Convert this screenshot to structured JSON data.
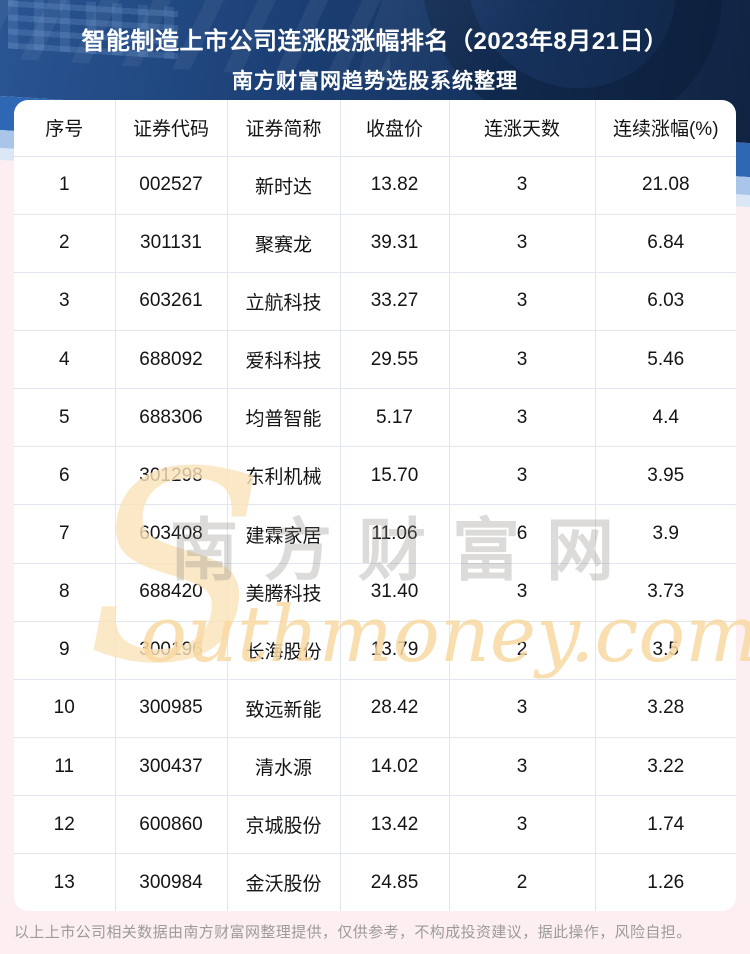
{
  "header": {
    "title_line1": "智能制造上市公司连涨股涨幅排名（2023年8月21日）",
    "title_line2": "南方财富网趋势选股系统整理"
  },
  "chart_data": {
    "type": "table",
    "title": "智能制造上市公司连涨股涨幅排名（2023年8月21日）",
    "subtitle": "南方财富网趋势选股系统整理",
    "columns": [
      "序号",
      "证券代码",
      "证券简称",
      "收盘价",
      "连涨天数",
      "连续涨幅(%)"
    ],
    "rows": [
      [
        "1",
        "002527",
        "新时达",
        "13.82",
        "3",
        "21.08"
      ],
      [
        "2",
        "301131",
        "聚赛龙",
        "39.31",
        "3",
        "6.84"
      ],
      [
        "3",
        "603261",
        "立航科技",
        "33.27",
        "3",
        "6.03"
      ],
      [
        "4",
        "688092",
        "爱科科技",
        "29.55",
        "3",
        "5.46"
      ],
      [
        "5",
        "688306",
        "均普智能",
        "5.17",
        "3",
        "4.4"
      ],
      [
        "6",
        "301298",
        "东利机械",
        "15.70",
        "3",
        "3.95"
      ],
      [
        "7",
        "603408",
        "建霖家居",
        "11.06",
        "6",
        "3.9"
      ],
      [
        "8",
        "688420",
        "美腾科技",
        "31.40",
        "3",
        "3.73"
      ],
      [
        "9",
        "300196",
        "长海股份",
        "13.79",
        "2",
        "3.5"
      ],
      [
        "10",
        "300985",
        "致远新能",
        "28.42",
        "3",
        "3.28"
      ],
      [
        "11",
        "300437",
        "清水源",
        "14.02",
        "3",
        "3.22"
      ],
      [
        "12",
        "600860",
        "京城股份",
        "13.42",
        "3",
        "1.74"
      ],
      [
        "13",
        "300984",
        "金沃股份",
        "24.85",
        "2",
        "1.26"
      ]
    ],
    "layout": {
      "grid": true,
      "header_position": "top",
      "row_count": 13
    }
  },
  "watermark": {
    "big_s": "S",
    "cjk": "南方财富网",
    "latin": "outhmoney.com"
  },
  "footer": {
    "disclaimer": "以上上市公司相关数据由南方财富网整理提供，仅供参考，不构成投资建议，据此操作，风险自担。"
  },
  "colors": {
    "banner_navy": "#1b3f74",
    "band_royal": "#2e68b4",
    "band_pale": "#a9c6ea",
    "page_pink": "#fdeff1",
    "card_white": "#ffffff",
    "grid_line": "#dfe6f0",
    "text_dark": "#141414",
    "footer_gray": "#9b9b9b",
    "watermark_cream": "#fbe3ba",
    "watermark_orange": "#f9d9a2"
  }
}
